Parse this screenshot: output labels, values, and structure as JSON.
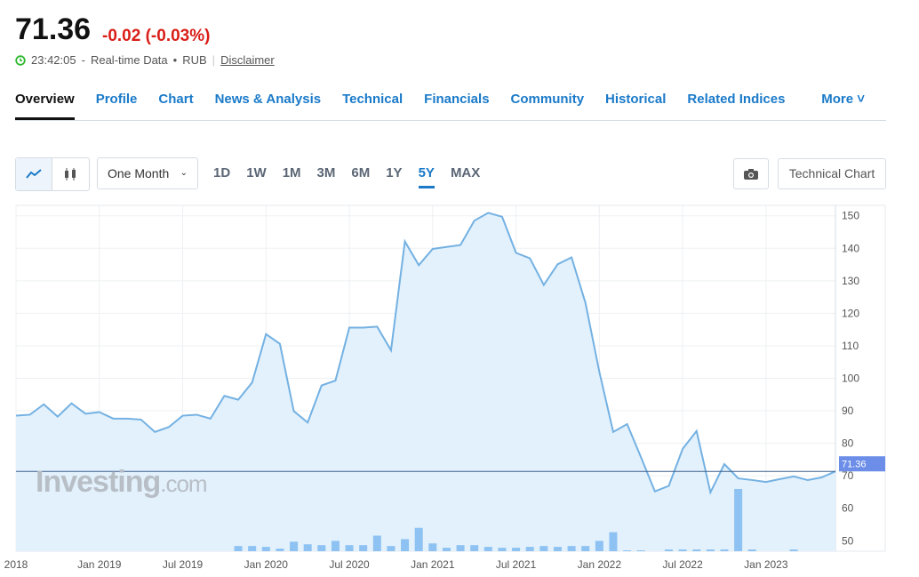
{
  "header": {
    "price": "71.36",
    "change": "-0.02",
    "change_percent": "(-0.03%)",
    "time": "23:42:05",
    "data_type": "Real-time Data",
    "currency": "RUB",
    "disclaimer": "Disclaimer"
  },
  "tabs": [
    "Overview",
    "Profile",
    "Chart",
    "News & Analysis",
    "Technical",
    "Financials",
    "Community",
    "Historical",
    "Related Indices",
    "More"
  ],
  "toolbar": {
    "interval": "One Month",
    "ranges": [
      "1D",
      "1W",
      "1M",
      "3M",
      "6M",
      "1Y",
      "5Y",
      "MAX"
    ],
    "active_range": "5Y",
    "technical": "Technical Chart"
  },
  "watermark": {
    "brand": "Investing",
    ".com": ".com"
  },
  "chart_data": {
    "type": "area",
    "color": "#74b1e2",
    "fill": "#e2f1fc",
    "volume_color": "#8ec2f2",
    "grid": true,
    "last_label": "71.36",
    "x": [
      0,
      1,
      2,
      3,
      4,
      5,
      6,
      7,
      8,
      9,
      10,
      11,
      12,
      13,
      14,
      15,
      16,
      17,
      18,
      19,
      20,
      21,
      22,
      23,
      24,
      25,
      26,
      27,
      28,
      29,
      30,
      31,
      32,
      33,
      34,
      35,
      36,
      37,
      38,
      39,
      40,
      41,
      42,
      43,
      44,
      45,
      46,
      47,
      48,
      49,
      50,
      51,
      52,
      53,
      54,
      55,
      56,
      57,
      58,
      59
    ],
    "xlim": [
      0,
      59
    ],
    "xticks": [
      {
        "value": 0,
        "label": "2018"
      },
      {
        "value": 6,
        "label": "Jan 2019"
      },
      {
        "value": 12,
        "label": "Jul 2019"
      },
      {
        "value": 18,
        "label": "Jan 2020"
      },
      {
        "value": 24,
        "label": "Jul 2020"
      },
      {
        "value": 30,
        "label": "Jan 2021"
      },
      {
        "value": 36,
        "label": "Jul 2021"
      },
      {
        "value": 42,
        "label": "Jan 2022"
      },
      {
        "value": 48,
        "label": "Jul 2022"
      },
      {
        "value": 54,
        "label": "Jan 2023"
      }
    ],
    "values": [
      88.5,
      88.8,
      92,
      88.2,
      92.3,
      89.1,
      89.6,
      87.6,
      87.6,
      87.3,
      83.5,
      85,
      88.5,
      88.8,
      87.6,
      94.6,
      93.4,
      98.7,
      113.6,
      110.6,
      89.9,
      86.4,
      97.8,
      99.3,
      115.6,
      115.6,
      115.9,
      108.6,
      142.1,
      134.8,
      139.8,
      140.4,
      141,
      148.5,
      150.9,
      149.7,
      138.6,
      136.9,
      128.7,
      135.1,
      137.2,
      123.2,
      102,
      83.5,
      85.9,
      75.7,
      65.2,
      66.9,
      78.3,
      83.8,
      64.9,
      73.6,
      69.2,
      68.7,
      68.1,
      69,
      69.8,
      68.7,
      69.5,
      71.36
    ],
    "volume": [
      0,
      0,
      0,
      0,
      0,
      0,
      0,
      0,
      0,
      0,
      0,
      0,
      0,
      0,
      0,
      0,
      6,
      6,
      5,
      3,
      11,
      8,
      7,
      12,
      7,
      7,
      18,
      6,
      14,
      27,
      9,
      4,
      7,
      7,
      5,
      4,
      4,
      5,
      6,
      5,
      6,
      6,
      12,
      22,
      1,
      1,
      0,
      2,
      2,
      2,
      2,
      2,
      72,
      2,
      0,
      0,
      2,
      0,
      0,
      0
    ],
    "volume_lim": [
      0,
      400
    ],
    "ylim": [
      46.8,
      153.2
    ],
    "yticks": [
      50,
      60,
      70,
      80,
      90,
      100,
      110,
      120,
      130,
      140,
      150
    ]
  }
}
